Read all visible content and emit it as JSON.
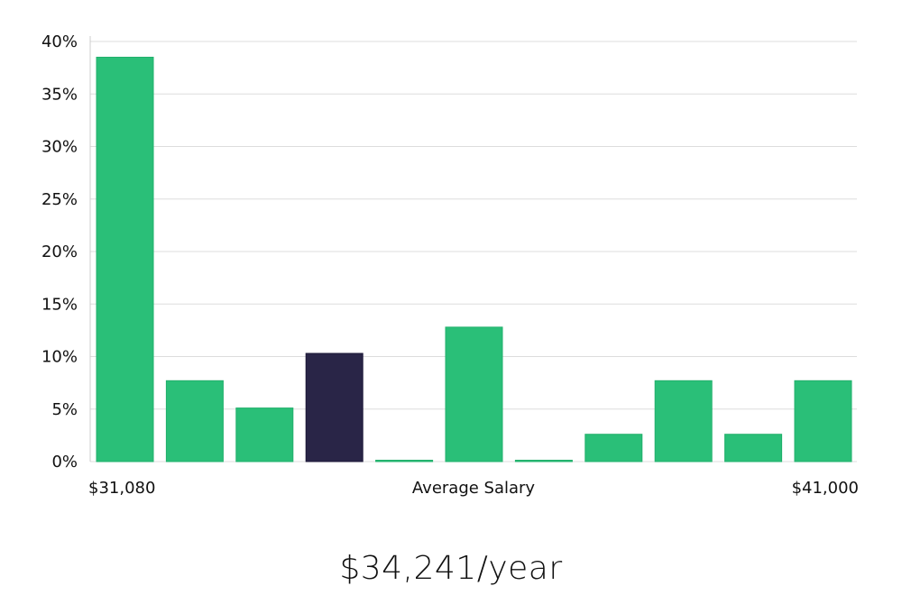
{
  "chart_data": {
    "type": "bar",
    "bins": 11,
    "values": [
      38.5,
      7.7,
      5.1,
      10.3,
      0,
      12.8,
      0,
      2.6,
      7.7,
      2.6,
      7.7
    ],
    "highlight_index": 3,
    "colors": {
      "bar": "#2abf78",
      "highlight": "#292547",
      "grid": "#dddddd",
      "axis": "#cccccc"
    },
    "ylim": [
      0,
      40
    ],
    "yticks": [
      "0%",
      "5%",
      "10%",
      "15%",
      "20%",
      "25%",
      "30%",
      "35%",
      "40%"
    ],
    "x_left_label": "$31,080",
    "x_center_label": "Average Salary",
    "x_right_label": "$41,000",
    "grid": true
  },
  "summary": {
    "salary_text": "$34,241/year"
  }
}
